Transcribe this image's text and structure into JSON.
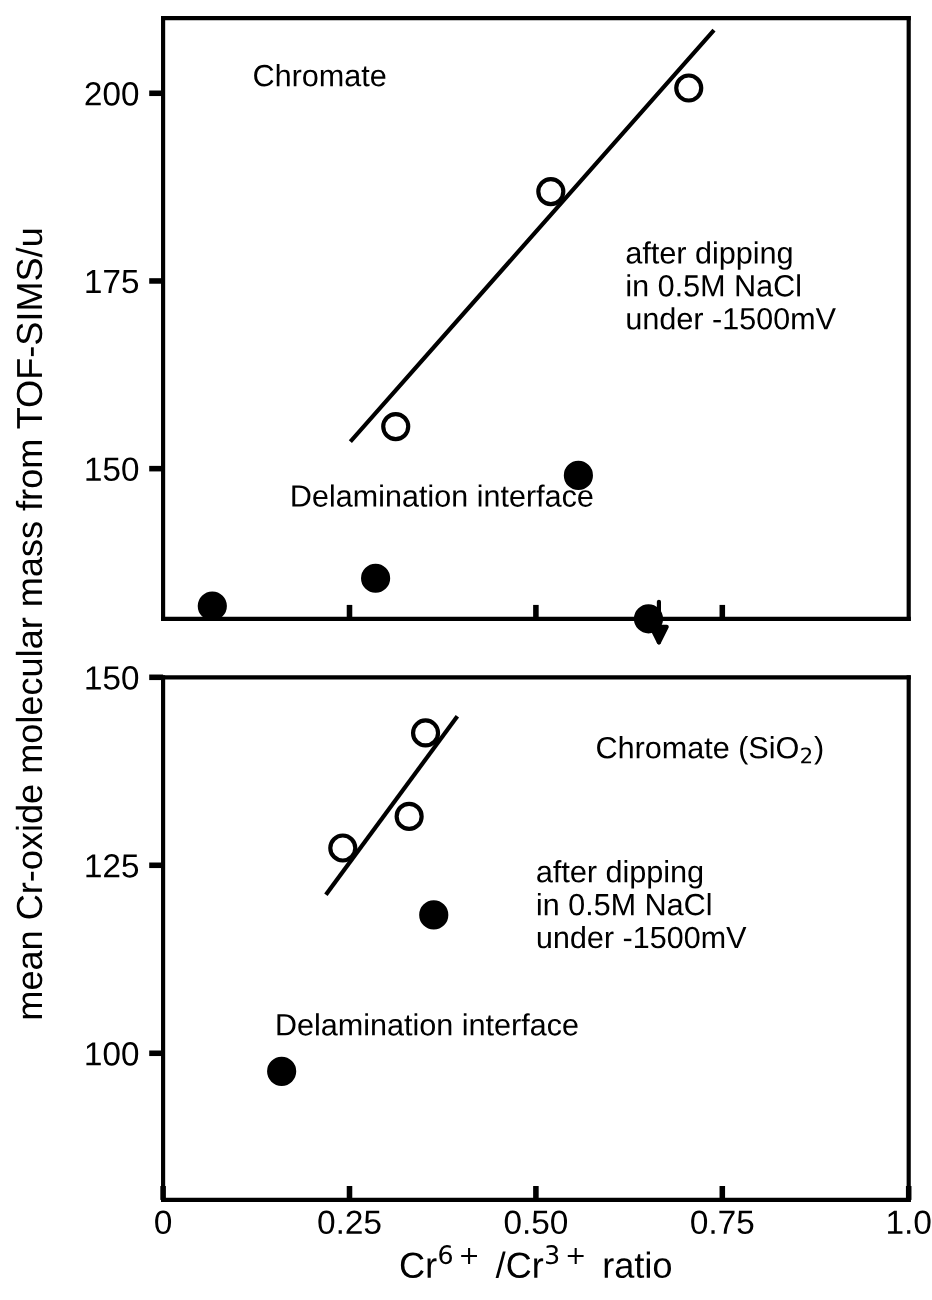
{
  "chart_data": [
    {
      "type": "scatter",
      "ylabel": "mean Cr-oxide molecular mass from TOF-SIMS/u",
      "annotations": [
        "Chromate",
        "after dipping\nin 0.5M NaCl\nunder -1500mV",
        "Delamination interface"
      ],
      "xlim": [
        0,
        1.0
      ],
      "ylim": [
        130,
        210
      ],
      "xticks": [
        {
          "value": 0.25,
          "label": null
        },
        {
          "value": 0.5,
          "label": null
        },
        {
          "value": 0.75,
          "label": null
        }
      ],
      "yticks": [
        150,
        175,
        200
      ],
      "tick_labels": "y",
      "grid": false,
      "legend": false,
      "series": [
        {
          "marker": "circle",
          "color": "#000000",
          "x": [
            0.312,
            0.52,
            0.705
          ],
          "values": [
            155.6,
            186.9,
            200.7
          ]
        },
        {
          "marker": "circle",
          "color": "#000000",
          "x": [
            0.066,
            0.285,
            0.557,
            0.651
          ],
          "values": [
            131.7,
            135.4,
            149.1,
            130
          ]
        },
        {
          "type": "line",
          "color": "#000000",
          "x": [
            0.253,
            0.737
          ],
          "values": [
            153.8,
            208.2
          ]
        }
      ]
    },
    {
      "type": "scatter",
      "xlabel": "Cr$^{6+}$ /Cr$^{3+}$ ratio",
      "annotations": [
        "Chromate (SiO$_{2}$)",
        "after dipping\nin 0.5M NaCl\nunder -1500mV",
        "Delamination interface"
      ],
      "xlim": [
        0,
        1.0
      ],
      "ylim": [
        80.5,
        150
      ],
      "xticks": [
        0,
        0.25,
        {
          "value": 0.5,
          "label": "0.50"
        },
        0.75,
        {
          "value": 1.0,
          "label": "1.0"
        }
      ],
      "yticks": [
        100,
        125,
        150
      ],
      "grid": false,
      "legend": false,
      "series": [
        {
          "marker": "circle",
          "color": "#000000",
          "x": [
            0.241,
            0.33,
            0.352
          ],
          "values": [
            127.3,
            131.5,
            142.6
          ]
        },
        {
          "marker": "circle",
          "color": "#000000",
          "x": [
            0.159,
            0.363
          ],
          "values": [
            97.6,
            118.4
          ]
        },
        {
          "type": "line",
          "color": "#000000",
          "x": [
            0.22,
            0.393
          ],
          "values": [
            121.3,
            144.6
          ]
        }
      ]
    }
  ]
}
